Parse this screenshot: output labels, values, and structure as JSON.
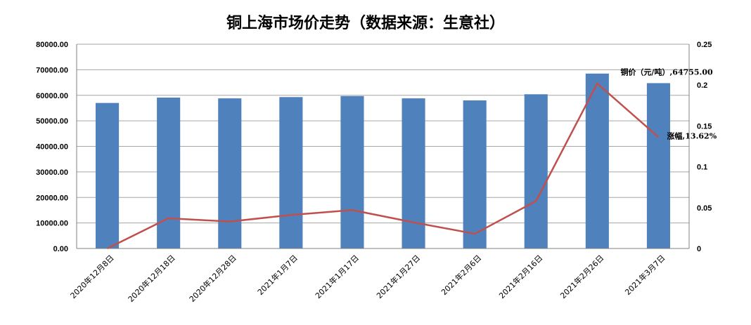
{
  "chart_data": {
    "type": "bar",
    "title": "铜上海市场价走势（数据来源：生意社）",
    "categories": [
      "2020年12月8日",
      "2020年12月18日",
      "2020年12月28日",
      "2021年1月7日",
      "2021年1月17日",
      "2021年1月27日",
      "2021年2月6日",
      "2021年2月16日",
      "2021年2月26日",
      "2021年3月7日"
    ],
    "series": [
      {
        "name": "铜价（元/吨）",
        "chart_type": "bar",
        "axis": "left",
        "values": [
          57000,
          59100,
          58800,
          59300,
          59700,
          58800,
          58000,
          60400,
          68500,
          64755
        ],
        "color": "#4F81BD"
      },
      {
        "name": "涨幅",
        "chart_type": "line",
        "axis": "right",
        "values": [
          0.0,
          0.037,
          0.033,
          0.041,
          0.047,
          0.032,
          0.018,
          0.058,
          0.202,
          0.1362
        ],
        "color": "#C0504D"
      }
    ],
    "ylim_left": [
      0,
      80000
    ],
    "ylim_right": [
      0,
      0.25
    ],
    "yticks_left": [
      "0.00",
      "10000.00",
      "20000.00",
      "30000.00",
      "40000.00",
      "50000.00",
      "60000.00",
      "70000.00",
      "80000.00"
    ],
    "yticks_right": [
      "0",
      "0.05",
      "0.1",
      "0.15",
      "0.2",
      "0.25"
    ],
    "grid": true,
    "annotations": [
      {
        "text": "铜价（元/吨）,64755.00",
        "series": 0,
        "index": 9
      },
      {
        "text": "涨幅,13.62%",
        "series": 1,
        "index": 9
      }
    ]
  }
}
